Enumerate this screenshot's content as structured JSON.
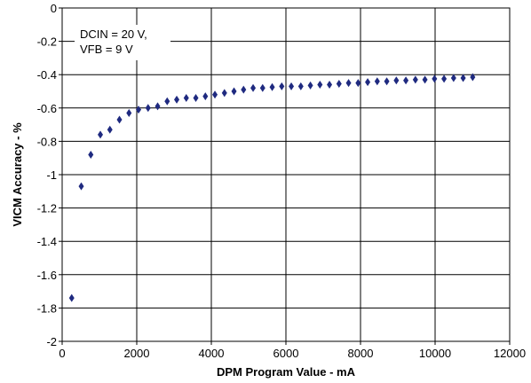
{
  "chart_data": {
    "type": "scatter",
    "title": "",
    "xlabel": "DPM Program Value - mA",
    "ylabel": "VICM Accuracy - %",
    "xlim": [
      0,
      12000
    ],
    "ylim": [
      -2,
      0
    ],
    "x_ticks": [
      "0",
      "2000",
      "4000",
      "6000",
      "8000",
      "10000",
      "12000"
    ],
    "y_ticks": [
      "0",
      "-0.2",
      "-0.4",
      "-0.6",
      "-0.8",
      "-1",
      "-1.2",
      "-1.4",
      "-1.6",
      "-1.8",
      "-2"
    ],
    "grid": true,
    "legend": "none",
    "marker": "diamond",
    "marker_color": "#1f2a80",
    "annotation": [
      "DCIN = 20 V,",
      "VFB = 9 V"
    ],
    "series": [
      {
        "x": [
          256,
          512,
          768,
          1024,
          1280,
          1536,
          1792,
          2048,
          2304,
          2560,
          2816,
          3072,
          3328,
          3584,
          3840,
          4096,
          4352,
          4608,
          4864,
          5120,
          5376,
          5632,
          5888,
          6144,
          6400,
          6656,
          6912,
          7168,
          7424,
          7680,
          7936,
          8192,
          8448,
          8704,
          8960,
          9216,
          9472,
          9728,
          9984,
          10240,
          10496,
          10752,
          11008
        ],
        "y": [
          -1.74,
          -1.07,
          -0.88,
          -0.76,
          -0.73,
          -0.67,
          -0.63,
          -0.61,
          -0.6,
          -0.59,
          -0.56,
          -0.55,
          -0.54,
          -0.54,
          -0.53,
          -0.52,
          -0.51,
          -0.5,
          -0.49,
          -0.48,
          -0.48,
          -0.475,
          -0.47,
          -0.47,
          -0.47,
          -0.465,
          -0.46,
          -0.46,
          -0.455,
          -0.45,
          -0.45,
          -0.445,
          -0.44,
          -0.44,
          -0.435,
          -0.435,
          -0.43,
          -0.43,
          -0.425,
          -0.425,
          -0.42,
          -0.42,
          -0.415
        ]
      }
    ]
  }
}
